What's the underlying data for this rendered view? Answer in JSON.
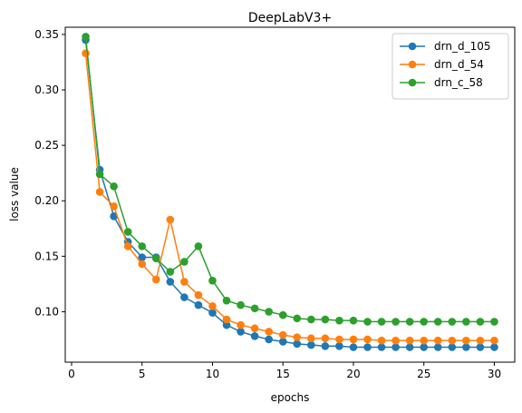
{
  "chart_data": {
    "type": "line",
    "title": "DeepLabV3+",
    "xlabel": "epochs",
    "ylabel": "loss value",
    "xlim": [
      -0.45,
      31.45
    ],
    "ylim": [
      0.0545,
      0.3565
    ],
    "xticks": [
      0,
      5,
      10,
      15,
      20,
      25,
      30
    ],
    "yticks": [
      0.1,
      0.15,
      0.2,
      0.25,
      0.3,
      0.35
    ],
    "ytick_labels": [
      "0.10",
      "0.15",
      "0.20",
      "0.25",
      "0.30",
      "0.35"
    ],
    "grid": false,
    "legend_position": "top-right",
    "x": [
      1,
      2,
      3,
      4,
      5,
      6,
      7,
      8,
      9,
      10,
      11,
      12,
      13,
      14,
      15,
      16,
      17,
      18,
      19,
      20,
      21,
      22,
      23,
      24,
      25,
      26,
      27,
      28,
      29,
      30
    ],
    "series": [
      {
        "name": "drn_d_105",
        "color": "#1f77b4",
        "values": [
          0.345,
          0.228,
          0.186,
          0.163,
          0.149,
          0.149,
          0.127,
          0.113,
          0.106,
          0.099,
          0.088,
          0.082,
          0.078,
          0.075,
          0.073,
          0.071,
          0.07,
          0.069,
          0.069,
          0.068,
          0.068,
          0.068,
          0.068,
          0.068,
          0.068,
          0.068,
          0.068,
          0.068,
          0.068,
          0.068
        ]
      },
      {
        "name": "drn_d_54",
        "color": "#ff7f0e",
        "values": [
          0.333,
          0.208,
          0.195,
          0.159,
          0.143,
          0.129,
          0.183,
          0.127,
          0.115,
          0.105,
          0.093,
          0.088,
          0.085,
          0.082,
          0.079,
          0.077,
          0.076,
          0.076,
          0.075,
          0.075,
          0.075,
          0.074,
          0.074,
          0.074,
          0.074,
          0.074,
          0.074,
          0.074,
          0.074,
          0.074
        ]
      },
      {
        "name": "drn_c_58",
        "color": "#2ca02c",
        "values": [
          0.348,
          0.224,
          0.213,
          0.172,
          0.159,
          0.148,
          0.136,
          0.145,
          0.159,
          0.128,
          0.11,
          0.106,
          0.103,
          0.1,
          0.097,
          0.094,
          0.093,
          0.093,
          0.092,
          0.092,
          0.091,
          0.091,
          0.091,
          0.091,
          0.091,
          0.091,
          0.091,
          0.091,
          0.091,
          0.091
        ]
      }
    ]
  }
}
